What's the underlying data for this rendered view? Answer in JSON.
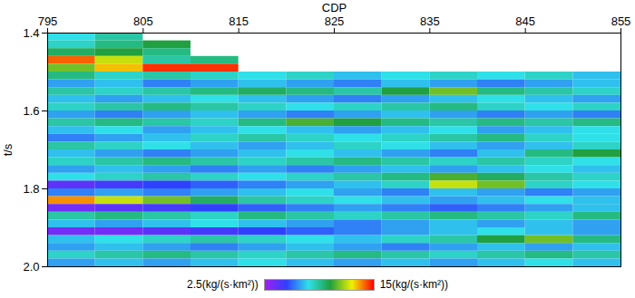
{
  "chart_data": {
    "type": "heatmap",
    "xlabel": "CDP",
    "ylabel": "t/s",
    "xlim": [
      795,
      855
    ],
    "xticks": [
      795,
      805,
      815,
      825,
      835,
      845,
      855
    ],
    "ylim": [
      1.4,
      2.0
    ],
    "yticks": [
      1.4,
      1.6,
      1.8,
      {
        "value": 2,
        "label": "2.0"
      }
    ],
    "grid": false,
    "x": [
      797.5,
      802.5,
      807.5,
      812.5,
      817.5,
      822.5,
      827.5,
      832.5,
      837.5,
      842.5,
      847.5,
      852.5
    ],
    "y": [
      1.41,
      1.43,
      1.45,
      1.47,
      1.49,
      1.51,
      1.53,
      1.55,
      1.57,
      1.59,
      1.61,
      1.63,
      1.65,
      1.67,
      1.69,
      1.71,
      1.73,
      1.75,
      1.77,
      1.79,
      1.81,
      1.83,
      1.85,
      1.87,
      1.89,
      1.91,
      1.93,
      1.95,
      1.97,
      1.99
    ],
    "cells": [
      [
        7.5,
        8.5,
        null,
        null,
        null,
        null,
        null,
        null,
        null,
        null,
        null,
        null
      ],
      [
        8,
        9,
        10,
        null,
        null,
        null,
        null,
        null,
        null,
        null,
        null,
        null
      ],
      [
        9.5,
        10,
        9,
        null,
        null,
        null,
        null,
        null,
        null,
        null,
        null,
        null
      ],
      [
        14,
        12,
        8.5,
        9,
        null,
        null,
        null,
        null,
        null,
        null,
        null,
        null
      ],
      [
        11,
        13,
        14.5,
        14.5,
        null,
        null,
        null,
        null,
        null,
        null,
        null,
        null
      ],
      [
        9,
        8,
        8.5,
        8,
        7.5,
        8,
        7,
        7.5,
        8,
        7.5,
        8,
        7
      ],
      [
        6.5,
        7,
        6,
        6.5,
        7,
        6.5,
        6,
        7,
        6.5,
        6,
        6.5,
        7
      ],
      [
        8.5,
        8,
        8.5,
        9,
        9.5,
        9,
        8.5,
        10,
        11,
        9,
        8.5,
        8
      ],
      [
        7,
        6.5,
        7,
        7.5,
        7,
        6.5,
        6,
        6.5,
        7,
        7.5,
        7,
        6.5
      ],
      [
        8,
        8.5,
        9,
        8.5,
        8,
        7.5,
        8,
        8.5,
        9,
        8,
        7.5,
        8
      ],
      [
        6.5,
        6,
        6.5,
        7,
        6.5,
        6,
        6.5,
        7,
        6.5,
        6,
        6.5,
        6
      ],
      [
        8.5,
        9,
        8.5,
        8,
        9,
        10.5,
        10,
        9,
        8.5,
        9,
        8.5,
        9
      ],
      [
        7,
        7.5,
        6.5,
        7,
        7.5,
        7,
        6.5,
        7,
        7.5,
        6.5,
        7,
        7.5
      ],
      [
        6,
        6.5,
        7,
        8,
        8.5,
        8,
        7.5,
        8,
        8.5,
        9,
        8,
        7.5
      ],
      [
        8.5,
        8,
        7.5,
        7,
        6.5,
        7,
        8,
        7.5,
        7,
        6.5,
        7,
        8
      ],
      [
        7,
        6.5,
        6,
        6.5,
        7,
        7.5,
        7,
        6.5,
        6,
        7,
        9,
        10
      ],
      [
        8,
        8.5,
        9,
        8.5,
        8,
        8.5,
        9,
        8.5,
        8,
        8.5,
        8,
        7.5
      ],
      [
        6.5,
        7,
        6.5,
        6,
        6.5,
        6,
        6.5,
        7,
        6.5,
        7,
        7.5,
        7
      ],
      [
        7.5,
        8,
        8.5,
        8,
        7.5,
        8,
        8.5,
        9,
        10.5,
        9.5,
        8.5,
        8
      ],
      [
        4,
        4.5,
        5,
        5.5,
        6,
        6.5,
        7,
        8,
        12,
        11,
        8,
        7.5
      ],
      [
        6,
        6.5,
        6,
        6.5,
        7,
        7.5,
        6.5,
        6,
        7,
        6.5,
        6,
        6.5
      ],
      [
        13.5,
        12,
        11,
        9.5,
        8.5,
        8,
        7.5,
        7,
        6.5,
        7,
        7.5,
        7
      ],
      [
        3.5,
        4,
        4.5,
        5,
        5.5,
        6,
        6.5,
        6,
        5.5,
        6,
        6.5,
        7
      ],
      [
        8.5,
        9,
        8.5,
        8,
        9,
        8.5,
        8,
        8.5,
        9,
        8.5,
        8,
        9
      ],
      [
        7,
        6.5,
        7,
        7.5,
        7,
        6.5,
        6,
        6.5,
        7,
        6.5,
        7,
        6.5
      ],
      [
        3.5,
        3.5,
        4,
        4.5,
        5,
        5.5,
        6,
        6.5,
        7,
        7.5,
        7,
        6.5
      ],
      [
        7,
        7.5,
        8,
        8.5,
        8,
        7.5,
        7,
        8,
        8.5,
        10,
        11,
        9
      ],
      [
        6.5,
        7,
        6.5,
        6,
        6.5,
        7,
        6.5,
        6,
        6.5,
        7,
        6.5,
        7
      ],
      [
        8,
        8.5,
        9,
        8.5,
        8,
        8.5,
        9,
        8.5,
        8,
        8.5,
        9,
        8.5
      ],
      [
        6.5,
        7,
        6.5,
        7,
        7.5,
        7,
        6.5,
        7,
        6.5,
        7,
        7.5,
        7
      ]
    ],
    "colorbar": {
      "range": [
        2.5,
        15
      ],
      "ticks": [
        {
          "value": 2.5,
          "label": "2.5(kg/(s·km²))"
        },
        {
          "value": 15,
          "label": "15(kg/(s·km²))"
        }
      ],
      "colors": [
        "#a020f0",
        "#3040ff",
        "#30e0e8",
        "#20a040",
        "#f0f000",
        "#ff0000"
      ]
    }
  }
}
